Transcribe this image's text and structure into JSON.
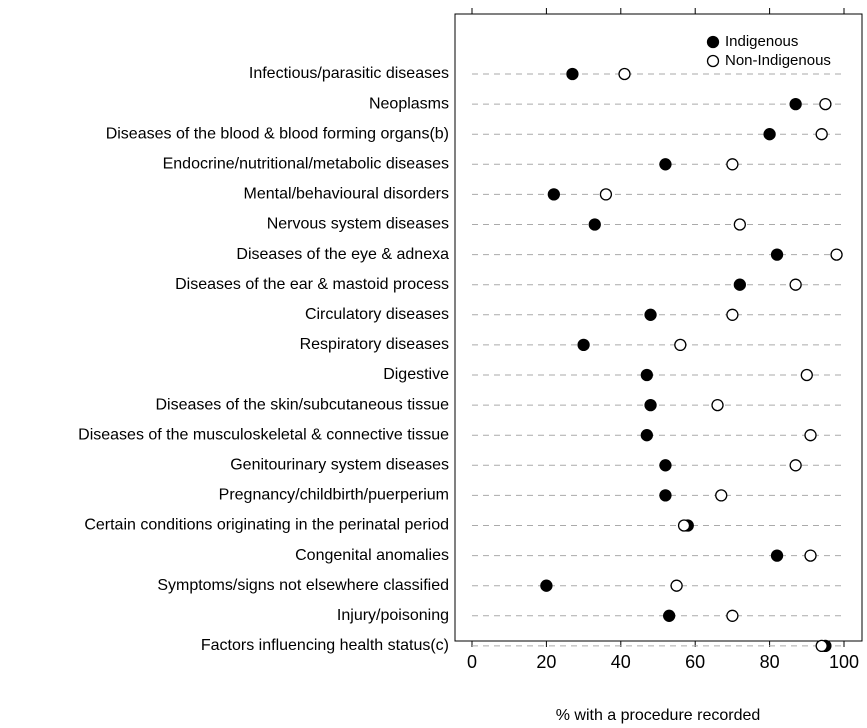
{
  "chart_data": {
    "type": "dot",
    "xlabel": "% with a procedure recorded",
    "categories": [
      "Infectious/parasitic diseases",
      "Neoplasms",
      "Diseases of the blood & blood forming organs(b)",
      "Endocrine/nutritional/metabolic diseases",
      "Mental/behavioural disorders",
      "Nervous system diseases",
      "Diseases of the eye & adnexa",
      "Diseases of the ear & mastoid process",
      "Circulatory diseases",
      "Respiratory diseases",
      "Digestive",
      "Diseases of the skin/subcutaneous tissue",
      "Diseases of the musculoskeletal & connective tissue",
      "Genitourinary system diseases",
      "Pregnancy/childbirth/puerperium",
      "Certain conditions originating in the perinatal period",
      "Congenital anomalies",
      "Symptoms/signs not elsewhere classified",
      "Injury/poisoning",
      "Factors influencing health status(c)"
    ],
    "series": [
      {
        "name": "Indigenous",
        "color": "#000000",
        "edgecolor": "#000000",
        "values": [
          27,
          87,
          80,
          52,
          22,
          33,
          82,
          72,
          48,
          30,
          47,
          48,
          47,
          52,
          52,
          58,
          82,
          20,
          53,
          95
        ]
      },
      {
        "name": "Non-Indigenous",
        "color": "#ffffff",
        "edgecolor": "#000000",
        "values": [
          41,
          95,
          94,
          70,
          36,
          72,
          98,
          87,
          70,
          56,
          90,
          66,
          91,
          87,
          67,
          57,
          91,
          55,
          70,
          94
        ]
      }
    ],
    "xlim": [
      0,
      100
    ],
    "xticks": [
      0,
      20,
      40,
      60,
      80,
      100
    ],
    "legend": "upper right",
    "guide_lines": true
  }
}
